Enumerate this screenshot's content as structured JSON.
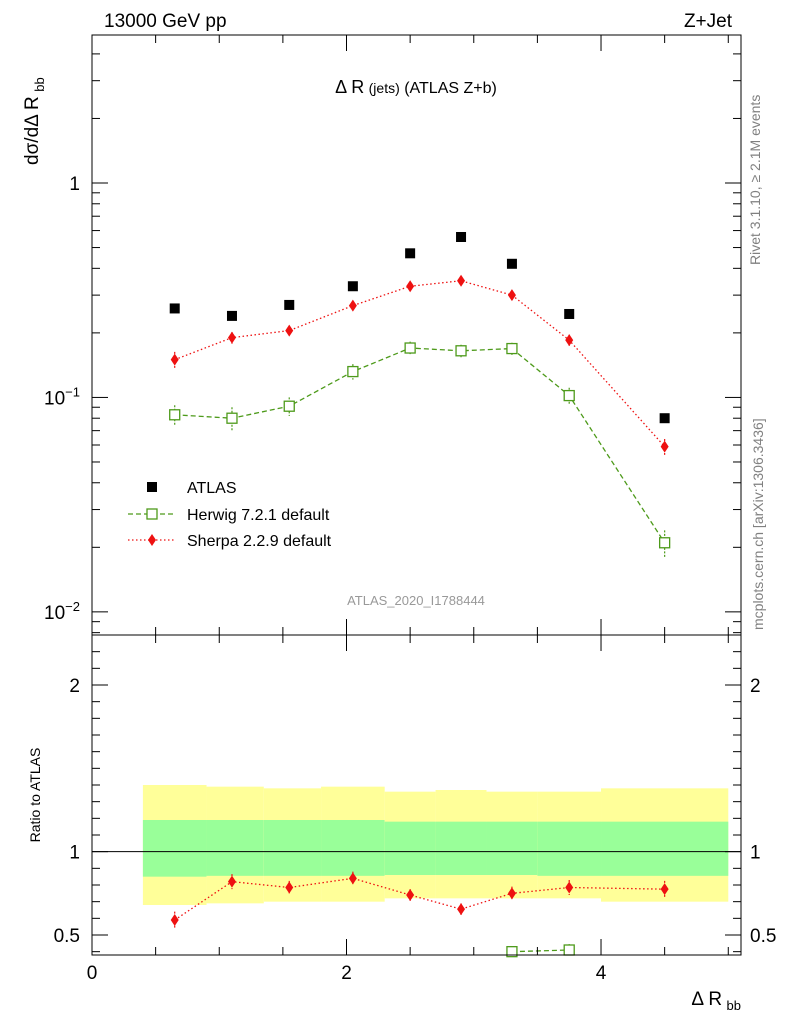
{
  "header": {
    "left": "13000 GeV pp",
    "right": "Z+Jet",
    "plot_title": "Δ R",
    "plot_title_sub": "(jets)",
    "plot_title_suffix": "(ATLAS Z+b)"
  },
  "side_labels": {
    "rivet": "Rivet 3.1.10, ≥ 2.1M events",
    "mcplots": "mcplots.cern.ch [arXiv:1306.3436]"
  },
  "analysis_label": "ATLAS_2020_I1788444",
  "colors": {
    "atlas": "#000000",
    "herwig": "#4d9a1a",
    "sherpa": "#ee1111",
    "band_inner": "#99ff99",
    "band_outer": "#ffff99"
  },
  "chart_data": [
    {
      "type": "scatter",
      "panel": "main",
      "ylabel": "dσ/dΔ R",
      "ylabel_sub": "bb",
      "yscale": "log",
      "xlim": [
        0,
        5.1
      ],
      "ylim": [
        0.0078,
        4.9
      ],
      "y_ticks": [
        {
          "value": 0.01,
          "base": "10",
          "exp": "−2"
        },
        {
          "value": 0.1,
          "base": "10",
          "exp": "−1"
        },
        {
          "value": 1,
          "base": "1",
          "exp": ""
        }
      ],
      "x": [
        0.65,
        1.1,
        1.55,
        2.05,
        2.5,
        2.9,
        3.3,
        3.75,
        4.5
      ],
      "series": [
        {
          "name": "ATLAS",
          "key": "atlas",
          "marker": "square",
          "values": [
            0.26,
            0.24,
            0.27,
            0.33,
            0.47,
            0.56,
            0.42,
            0.245,
            0.08
          ],
          "errors": [
            0,
            0,
            0,
            0,
            0,
            0,
            0,
            0,
            0
          ]
        },
        {
          "name": "Herwig 7.2.1 default",
          "key": "herwig",
          "marker": "open-square",
          "line": "dashed",
          "values": [
            0.083,
            0.08,
            0.091,
            0.132,
            0.17,
            0.165,
            0.169,
            0.102,
            0.021
          ],
          "errors": [
            0.009,
            0.01,
            0.009,
            0.011,
            0.012,
            0.011,
            0.011,
            0.009,
            0.003
          ]
        },
        {
          "name": "Sherpa 2.2.9 default",
          "key": "sherpa",
          "marker": "diamond",
          "line": "dotted",
          "values": [
            0.15,
            0.19,
            0.205,
            0.268,
            0.33,
            0.35,
            0.3,
            0.185,
            0.059
          ],
          "errors": [
            0.013,
            0.012,
            0.011,
            0.012,
            0.013,
            0.012,
            0.011,
            0.011,
            0.005
          ]
        }
      ],
      "legend": "bottom-left"
    },
    {
      "type": "line",
      "panel": "ratio",
      "ylabel": "Ratio to ATLAS",
      "xlabel": "Δ R",
      "xlabel_sub": "bb",
      "xlim": [
        0,
        5.1
      ],
      "ylim": [
        0.38,
        2.3
      ],
      "x_ticks": [
        "0",
        "2",
        "4"
      ],
      "y_ticks": [
        "0.5",
        "1",
        "2"
      ],
      "bins": [
        0.4,
        0.9,
        1.35,
        1.8,
        2.3,
        2.7,
        3.1,
        3.5,
        4.0,
        5.0
      ],
      "band_outer": {
        "low": [
          0.68,
          0.69,
          0.7,
          0.7,
          0.72,
          0.72,
          0.72,
          0.72,
          0.7
        ],
        "high": [
          1.4,
          1.39,
          1.38,
          1.39,
          1.36,
          1.37,
          1.36,
          1.36,
          1.38
        ]
      },
      "band_inner": {
        "low": [
          0.85,
          0.855,
          0.855,
          0.855,
          0.86,
          0.86,
          0.86,
          0.855,
          0.855
        ],
        "high": [
          1.19,
          1.19,
          1.19,
          1.19,
          1.18,
          1.18,
          1.18,
          1.18,
          1.18
        ]
      },
      "x": [
        0.65,
        1.1,
        1.55,
        2.05,
        2.5,
        2.9,
        3.3,
        3.75,
        4.5
      ],
      "series": [
        {
          "name": "Sherpa 2.2.9 default",
          "key": "sherpa",
          "marker": "diamond",
          "line": "dotted",
          "values": [
            0.59,
            0.82,
            0.785,
            0.84,
            0.74,
            0.655,
            0.75,
            0.785,
            0.775
          ],
          "errors": [
            0.05,
            0.045,
            0.04,
            0.04,
            0.035,
            0.035,
            0.04,
            0.045,
            0.05
          ]
        },
        {
          "name": "Herwig 7.2.1 default",
          "key": "herwig",
          "marker": "open-square",
          "line": "dashed",
          "values": [
            null,
            null,
            null,
            null,
            null,
            null,
            0.4,
            0.41,
            null
          ],
          "errors": [
            0,
            0,
            0,
            0,
            0,
            0,
            0.03,
            0.035,
            0
          ]
        }
      ]
    }
  ]
}
